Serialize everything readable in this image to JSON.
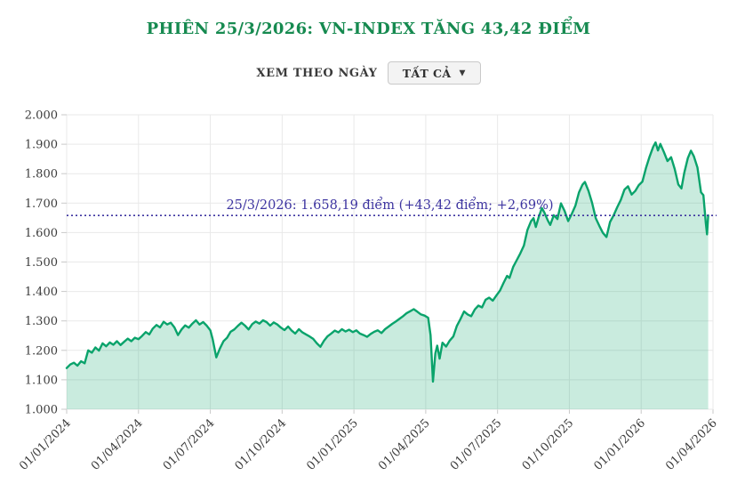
{
  "header": {
    "title": "PHIÊN 25/3/2026: VN-INDEX TĂNG 43,42 ĐIỂM",
    "title_color": "#168a50"
  },
  "controls": {
    "label": "XEM THEO NGÀY",
    "dropdown_value": "TẤT CẢ",
    "dropdown_caret": "▼"
  },
  "chart_data": {
    "type": "area",
    "series_name": "VN-INDEX",
    "x_unit": "months since 01/01/2024",
    "xlim": [
      0,
      27
    ],
    "ylim": [
      1000,
      2000
    ],
    "grid": true,
    "grid_color": "#e9e9e9",
    "tick_color": "#c9c9c9",
    "axis_label_color": "#3c3c3c",
    "line_color": "#0aa36b",
    "fill_color": "rgba(10,163,107,0.22)",
    "x_ticks": [
      {
        "m": 0,
        "label": "01/01/2024"
      },
      {
        "m": 3,
        "label": "01/04/2024"
      },
      {
        "m": 6,
        "label": "01/07/2024"
      },
      {
        "m": 9,
        "label": "01/10/2024"
      },
      {
        "m": 12,
        "label": "01/01/2025"
      },
      {
        "m": 15,
        "label": "01/04/2025"
      },
      {
        "m": 18,
        "label": "01/07/2025"
      },
      {
        "m": 21,
        "label": "01/10/2025"
      },
      {
        "m": 24,
        "label": "01/01/2026"
      },
      {
        "m": 27,
        "label": "01/04/2026"
      }
    ],
    "y_ticks": [
      {
        "v": 1000,
        "label": "1.000"
      },
      {
        "v": 1100,
        "label": "1.100"
      },
      {
        "v": 1200,
        "label": "1.200"
      },
      {
        "v": 1300,
        "label": "1.300"
      },
      {
        "v": 1400,
        "label": "1.400"
      },
      {
        "v": 1500,
        "label": "1.500"
      },
      {
        "v": 1600,
        "label": "1.600"
      },
      {
        "v": 1700,
        "label": "1.700"
      },
      {
        "v": 1800,
        "label": "1.800"
      },
      {
        "v": 1900,
        "label": "1.900"
      },
      {
        "v": 2000,
        "label": "2.000"
      }
    ],
    "reference_line": {
      "value": 1658.19,
      "label": "25/3/2026: 1.658,19 điểm (+43,42 điểm; +2,69%)",
      "color": "#3d34a0"
    },
    "points": [
      [
        0,
        1140
      ],
      [
        0.15,
        1152
      ],
      [
        0.3,
        1158
      ],
      [
        0.45,
        1148
      ],
      [
        0.6,
        1163
      ],
      [
        0.75,
        1156
      ],
      [
        0.9,
        1200
      ],
      [
        1.05,
        1192
      ],
      [
        1.2,
        1210
      ],
      [
        1.35,
        1199
      ],
      [
        1.5,
        1224
      ],
      [
        1.65,
        1214
      ],
      [
        1.8,
        1227
      ],
      [
        1.95,
        1219
      ],
      [
        2.1,
        1231
      ],
      [
        2.25,
        1218
      ],
      [
        2.4,
        1229
      ],
      [
        2.55,
        1240
      ],
      [
        2.7,
        1231
      ],
      [
        2.85,
        1243
      ],
      [
        3.0,
        1238
      ],
      [
        3.15,
        1249
      ],
      [
        3.3,
        1262
      ],
      [
        3.45,
        1254
      ],
      [
        3.6,
        1274
      ],
      [
        3.75,
        1286
      ],
      [
        3.9,
        1278
      ],
      [
        4.05,
        1297
      ],
      [
        4.2,
        1288
      ],
      [
        4.35,
        1294
      ],
      [
        4.5,
        1278
      ],
      [
        4.65,
        1252
      ],
      [
        4.8,
        1271
      ],
      [
        4.95,
        1285
      ],
      [
        5.1,
        1277
      ],
      [
        5.25,
        1291
      ],
      [
        5.4,
        1302
      ],
      [
        5.55,
        1288
      ],
      [
        5.7,
        1296
      ],
      [
        5.85,
        1284
      ],
      [
        6.0,
        1268
      ],
      [
        6.1,
        1238
      ],
      [
        6.25,
        1176
      ],
      [
        6.4,
        1206
      ],
      [
        6.55,
        1231
      ],
      [
        6.7,
        1243
      ],
      [
        6.85,
        1263
      ],
      [
        7.0,
        1271
      ],
      [
        7.15,
        1283
      ],
      [
        7.3,
        1294
      ],
      [
        7.45,
        1284
      ],
      [
        7.6,
        1271
      ],
      [
        7.75,
        1289
      ],
      [
        7.9,
        1298
      ],
      [
        8.05,
        1291
      ],
      [
        8.2,
        1302
      ],
      [
        8.35,
        1296
      ],
      [
        8.5,
        1284
      ],
      [
        8.65,
        1295
      ],
      [
        8.8,
        1288
      ],
      [
        8.95,
        1277
      ],
      [
        9.1,
        1269
      ],
      [
        9.25,
        1281
      ],
      [
        9.4,
        1267
      ],
      [
        9.55,
        1257
      ],
      [
        9.7,
        1272
      ],
      [
        9.85,
        1261
      ],
      [
        10.0,
        1254
      ],
      [
        10.15,
        1247
      ],
      [
        10.3,
        1239
      ],
      [
        10.45,
        1224
      ],
      [
        10.6,
        1212
      ],
      [
        10.75,
        1233
      ],
      [
        10.9,
        1248
      ],
      [
        11.05,
        1257
      ],
      [
        11.2,
        1267
      ],
      [
        11.35,
        1261
      ],
      [
        11.5,
        1272
      ],
      [
        11.65,
        1264
      ],
      [
        11.8,
        1270
      ],
      [
        11.95,
        1262
      ],
      [
        12.1,
        1268
      ],
      [
        12.25,
        1257
      ],
      [
        12.4,
        1252
      ],
      [
        12.55,
        1246
      ],
      [
        12.7,
        1256
      ],
      [
        12.85,
        1263
      ],
      [
        13.0,
        1268
      ],
      [
        13.15,
        1259
      ],
      [
        13.3,
        1272
      ],
      [
        13.45,
        1281
      ],
      [
        13.6,
        1290
      ],
      [
        13.75,
        1298
      ],
      [
        13.9,
        1307
      ],
      [
        14.05,
        1316
      ],
      [
        14.2,
        1326
      ],
      [
        14.35,
        1333
      ],
      [
        14.5,
        1340
      ],
      [
        14.65,
        1331
      ],
      [
        14.8,
        1322
      ],
      [
        14.95,
        1318
      ],
      [
        15.1,
        1311
      ],
      [
        15.2,
        1252
      ],
      [
        15.3,
        1094
      ],
      [
        15.4,
        1190
      ],
      [
        15.48,
        1216
      ],
      [
        15.58,
        1172
      ],
      [
        15.7,
        1226
      ],
      [
        15.85,
        1213
      ],
      [
        16.0,
        1233
      ],
      [
        16.15,
        1247
      ],
      [
        16.3,
        1283
      ],
      [
        16.45,
        1306
      ],
      [
        16.6,
        1332
      ],
      [
        16.75,
        1322
      ],
      [
        16.9,
        1316
      ],
      [
        17.05,
        1339
      ],
      [
        17.2,
        1352
      ],
      [
        17.35,
        1346
      ],
      [
        17.5,
        1372
      ],
      [
        17.65,
        1379
      ],
      [
        17.8,
        1369
      ],
      [
        17.95,
        1386
      ],
      [
        18.1,
        1403
      ],
      [
        18.25,
        1429
      ],
      [
        18.4,
        1453
      ],
      [
        18.5,
        1446
      ],
      [
        18.65,
        1483
      ],
      [
        18.8,
        1506
      ],
      [
        18.95,
        1529
      ],
      [
        19.1,
        1556
      ],
      [
        19.25,
        1609
      ],
      [
        19.4,
        1639
      ],
      [
        19.5,
        1649
      ],
      [
        19.6,
        1619
      ],
      [
        19.72,
        1653
      ],
      [
        19.85,
        1683
      ],
      [
        19.95,
        1669
      ],
      [
        20.1,
        1641
      ],
      [
        20.2,
        1626
      ],
      [
        20.35,
        1659
      ],
      [
        20.5,
        1646
      ],
      [
        20.65,
        1699
      ],
      [
        20.8,
        1673
      ],
      [
        20.95,
        1639
      ],
      [
        21.1,
        1663
      ],
      [
        21.25,
        1691
      ],
      [
        21.4,
        1736
      ],
      [
        21.55,
        1763
      ],
      [
        21.65,
        1772
      ],
      [
        21.8,
        1741
      ],
      [
        21.95,
        1701
      ],
      [
        22.1,
        1649
      ],
      [
        22.25,
        1623
      ],
      [
        22.4,
        1599
      ],
      [
        22.55,
        1585
      ],
      [
        22.7,
        1636
      ],
      [
        22.85,
        1659
      ],
      [
        23.0,
        1686
      ],
      [
        23.15,
        1711
      ],
      [
        23.3,
        1746
      ],
      [
        23.45,
        1757
      ],
      [
        23.6,
        1729
      ],
      [
        23.75,
        1741
      ],
      [
        23.9,
        1761
      ],
      [
        24.05,
        1773
      ],
      [
        24.2,
        1819
      ],
      [
        24.35,
        1857
      ],
      [
        24.5,
        1891
      ],
      [
        24.6,
        1906
      ],
      [
        24.7,
        1879
      ],
      [
        24.8,
        1901
      ],
      [
        24.95,
        1873
      ],
      [
        25.1,
        1843
      ],
      [
        25.25,
        1856
      ],
      [
        25.4,
        1816
      ],
      [
        25.55,
        1763
      ],
      [
        25.68,
        1750
      ],
      [
        25.8,
        1803
      ],
      [
        25.95,
        1853
      ],
      [
        26.08,
        1878
      ],
      [
        26.2,
        1859
      ],
      [
        26.35,
        1821
      ],
      [
        26.5,
        1737
      ],
      [
        26.6,
        1727
      ],
      [
        26.7,
        1633
      ],
      [
        26.75,
        1594
      ],
      [
        26.8,
        1658.19
      ]
    ]
  }
}
